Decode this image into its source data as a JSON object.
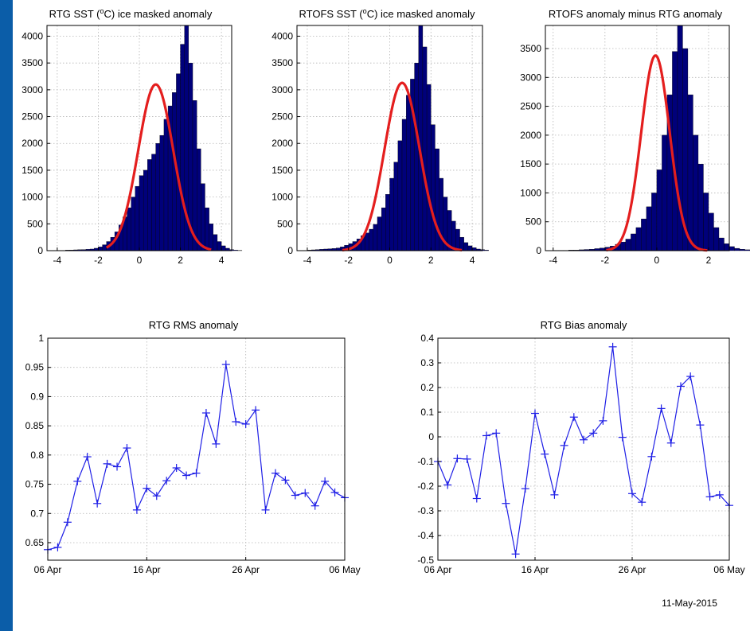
{
  "footer": {
    "date_stamp": "11-May-2015"
  },
  "colors": {
    "frame_blue": "#0b5da8",
    "bar_fill": "#00007a",
    "fit_line": "#e41e1e",
    "series_line": "#1f1fe6"
  },
  "chart_data": [
    {
      "id": "rtg-hist",
      "type": "bar",
      "title": "RTG SST (°C) ice masked anomaly",
      "xlim": [
        -4.5,
        4.5
      ],
      "ylim": [
        0,
        4200
      ],
      "xticks": [
        -4,
        -2,
        0,
        2,
        4
      ],
      "yticks": [
        0,
        500,
        1000,
        1500,
        2000,
        2500,
        3000,
        3500,
        4000
      ],
      "bin_start": -4.0,
      "bin_width": 0.2,
      "values": [
        5,
        5,
        10,
        12,
        15,
        18,
        20,
        25,
        30,
        45,
        70,
        110,
        170,
        250,
        350,
        480,
        630,
        800,
        1000,
        1200,
        1400,
        1500,
        1700,
        1800,
        2000,
        2150,
        2450,
        2700,
        2950,
        3300,
        3850,
        4200,
        3500,
        2800,
        1900,
        1250,
        800,
        500,
        300,
        170,
        90,
        45,
        20,
        10,
        5
      ],
      "fit": {
        "mean": 0.8,
        "std": 0.85,
        "peak": 3100,
        "range": [
          -1.6,
          3.5
        ]
      },
      "grid": true
    },
    {
      "id": "rtofs-hist",
      "type": "bar",
      "title": "RTOFS SST (°C) ice masked anomaly",
      "xlim": [
        -4.5,
        4.5
      ],
      "ylim": [
        0,
        4200
      ],
      "xticks": [
        -4,
        -2,
        0,
        2,
        4
      ],
      "yticks": [
        0,
        500,
        1000,
        1500,
        2000,
        2500,
        3000,
        3500,
        4000
      ],
      "bin_start": -4.0,
      "bin_width": 0.2,
      "values": [
        10,
        15,
        20,
        25,
        30,
        35,
        40,
        50,
        70,
        100,
        130,
        170,
        220,
        280,
        330,
        400,
        490,
        630,
        800,
        1050,
        1350,
        1650,
        2050,
        2450,
        2900,
        3200,
        3500,
        4200,
        3800,
        3100,
        2350,
        1900,
        1350,
        1000,
        750,
        550,
        400,
        250,
        150,
        90,
        55,
        30,
        20,
        10
      ],
      "fit": {
        "mean": 0.6,
        "std": 0.85,
        "peak": 3130,
        "range": [
          -2.3,
          3.5
        ]
      },
      "grid": true
    },
    {
      "id": "diff-hist",
      "type": "bar",
      "title": "RTOFS anomaly minus RTG anomaly",
      "xlim": [
        -4.3,
        2.8
      ],
      "ylim": [
        0,
        3900
      ],
      "xticks": [
        -4,
        -2,
        0,
        2
      ],
      "yticks": [
        0,
        500,
        1000,
        1500,
        2000,
        2500,
        3000,
        3500
      ],
      "bin_start": -4.0,
      "bin_width": 0.2,
      "values": [
        5,
        5,
        5,
        10,
        10,
        15,
        20,
        25,
        35,
        45,
        60,
        80,
        110,
        150,
        200,
        290,
        400,
        550,
        760,
        1000,
        1400,
        2000,
        2700,
        3450,
        3900,
        3500,
        2700,
        2000,
        1500,
        1000,
        650,
        400,
        220,
        120,
        70,
        40,
        25,
        15,
        10,
        5
      ],
      "fit": {
        "mean": -0.05,
        "std": 0.55,
        "peak": 3380,
        "range": [
          -1.95,
          1.95
        ]
      },
      "grid": true
    },
    {
      "id": "rms-ts",
      "type": "line",
      "title": "RTG RMS anomaly",
      "xlim": [
        0,
        30
      ],
      "ylim": [
        0.62,
        1.0
      ],
      "xticks": [
        0,
        10,
        20,
        30
      ],
      "xtick_labels": [
        "06 Apr",
        "16 Apr",
        "26 Apr",
        "06 May"
      ],
      "yticks": [
        0.65,
        0.7,
        0.75,
        0.8,
        0.85,
        0.9,
        0.95,
        1
      ],
      "ytick_labels": [
        "0.65",
        "0.7",
        "0.75",
        "0.8",
        "0.85",
        "0.9",
        "0.95",
        "1"
      ],
      "x": [
        0,
        1,
        2,
        3,
        4,
        5,
        6,
        7,
        8,
        9,
        10,
        11,
        12,
        13,
        14,
        15,
        16,
        17,
        18,
        19,
        20,
        21,
        22,
        23,
        24,
        25,
        26,
        27,
        28,
        29,
        30
      ],
      "y": [
        0.638,
        0.642,
        0.685,
        0.755,
        0.797,
        0.717,
        0.785,
        0.78,
        0.812,
        0.706,
        0.743,
        0.73,
        0.756,
        0.778,
        0.765,
        0.769,
        0.872,
        0.819,
        0.955,
        0.857,
        0.853,
        0.877,
        0.706,
        0.769,
        0.757,
        0.731,
        0.735,
        0.713,
        0.755,
        0.736,
        0.727
      ],
      "grid": true
    },
    {
      "id": "bias-ts",
      "type": "line",
      "title": "RTG Bias anomaly",
      "xlim": [
        0,
        30
      ],
      "ylim": [
        -0.5,
        0.4
      ],
      "xticks": [
        0,
        10,
        20,
        30
      ],
      "xtick_labels": [
        "06 Apr",
        "16 Apr",
        "26 Apr",
        "06 May"
      ],
      "yticks": [
        -0.5,
        -0.4,
        -0.3,
        -0.2,
        -0.1,
        0,
        0.1,
        0.2,
        0.3,
        0.4
      ],
      "ytick_labels": [
        "-0.5",
        "-0.4",
        "-0.3",
        "-0.2",
        "-0.1",
        "0",
        "0.1",
        "0.2",
        "0.3",
        "0.4"
      ],
      "x": [
        0,
        1,
        2,
        3,
        4,
        5,
        6,
        7,
        8,
        9,
        10,
        11,
        12,
        13,
        14,
        15,
        16,
        17,
        18,
        19,
        20,
        21,
        22,
        23,
        24,
        25,
        26,
        27,
        28,
        29,
        30
      ],
      "y": [
        -0.1,
        -0.195,
        -0.088,
        -0.09,
        -0.25,
        0.005,
        0.015,
        -0.27,
        -0.475,
        -0.21,
        0.095,
        -0.07,
        -0.235,
        -0.035,
        0.08,
        -0.012,
        0.015,
        0.065,
        0.365,
        -0.002,
        -0.23,
        -0.265,
        -0.08,
        0.115,
        -0.025,
        0.205,
        0.245,
        0.048,
        -0.243,
        -0.235,
        -0.278
      ],
      "grid": true
    }
  ]
}
